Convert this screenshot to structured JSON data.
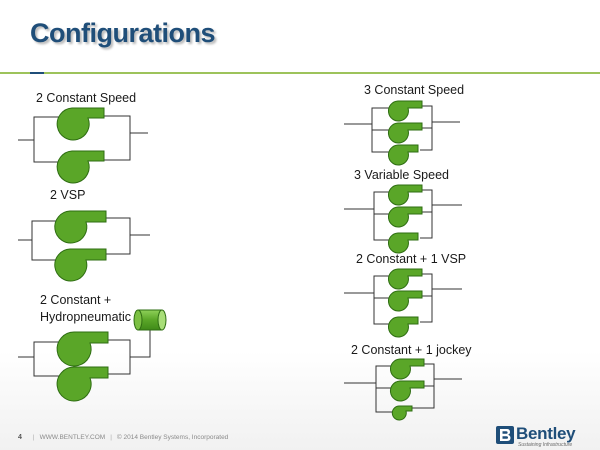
{
  "slide": {
    "title": "Configurations",
    "colors": {
      "title": "#1f4e79",
      "rule": "#9dc35b",
      "pump_fill": "#5aa628",
      "pump_stroke": "#2e6d12",
      "pipe": "#333333"
    }
  },
  "configurations": {
    "two_constant": "2 Constant Speed",
    "two_vsp": "2 VSP",
    "two_constant_hydro_line1": "2 Constant +",
    "two_constant_hydro_line2": "Hydropneumatic",
    "three_constant": "3 Constant Speed",
    "three_variable": "3 Variable Speed",
    "two_constant_one_vsp": "2 Constant + 1 VSP",
    "two_constant_one_jockey": "2 Constant + 1 jockey"
  },
  "footer": {
    "page_number": "4",
    "website": "WWW.BENTLEY.COM",
    "copyright": "© 2014 Bentley Systems, Incorporated"
  },
  "logo": {
    "name": "Bentley",
    "tagline": "Sustaining Infrastructure",
    "icon": "bentley-b-logo-icon"
  }
}
